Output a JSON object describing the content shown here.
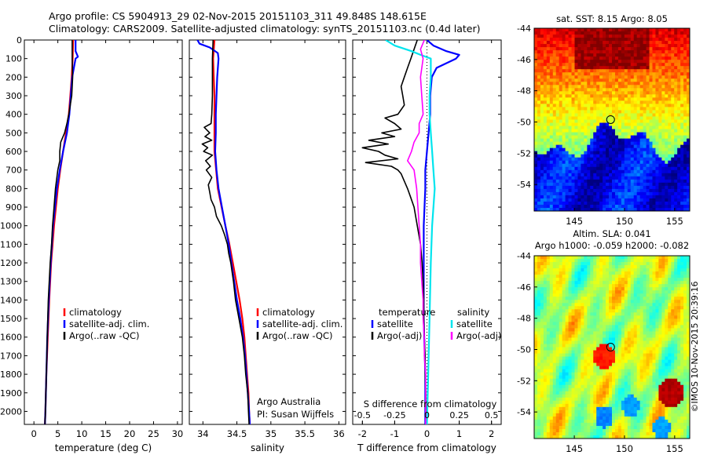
{
  "header": {
    "line1": "Argo profile: CS 5904913_29 02-Nov-2015 20151103_311 49.848S 148.615E",
    "line2": "Climatology: CARS2009. Satellite-adjusted climatology: synTS_20151103.nc (0.4d later)"
  },
  "colors": {
    "climatology": "#ff0000",
    "satellite_clim": "#0000ff",
    "argo": "#000000",
    "salinity_satellite": "#00e5ee",
    "salinity_argo": "#ff00ff"
  },
  "panels": {
    "temperature": {
      "xlabel": "temperature (deg C)",
      "xticks": [
        "0",
        "5",
        "10",
        "15",
        "20",
        "25",
        "30"
      ],
      "legend": [
        "climatology",
        "satellite-adj. clim.",
        "Argo(..raw -QC)"
      ]
    },
    "salinity": {
      "xlabel": "salinity",
      "xticks": [
        "34",
        "34.5",
        "35",
        "35.5",
        "36"
      ],
      "legend": [
        "climatology",
        "satellite-adj. clim.",
        "Argo(..raw -QC)"
      ],
      "credit1": "Argo Australia",
      "credit2": "PI: Susan Wijffels"
    },
    "difference": {
      "xlabel": "T difference from climatology",
      "xlabel_top": "S difference from climatology",
      "xticks": [
        "-2",
        "-1",
        "0",
        "1",
        "2"
      ],
      "sticks": [
        "-0.5",
        "-0.25",
        "0",
        "0.25",
        "0.5"
      ],
      "legend_t_title": "temperature",
      "legend_s_title": "salinity",
      "legend_t": [
        "satellite",
        "Argo(-adj)"
      ],
      "legend_s": [
        "satellite",
        "Argo(-adj)"
      ]
    },
    "depth_ticks": [
      "0",
      "100",
      "200",
      "300",
      "400",
      "500",
      "600",
      "700",
      "800",
      "900",
      "1000",
      "1100",
      "1200",
      "1300",
      "1400",
      "1500",
      "1600",
      "1700",
      "1800",
      "1900",
      "2000"
    ]
  },
  "maps": {
    "sst": {
      "title": "sat. SST: 8.15 Argo: 8.05",
      "yticks": [
        "-44",
        "-46",
        "-48",
        "-50",
        "-52",
        "-54"
      ],
      "xticks": [
        "145",
        "150",
        "155"
      ]
    },
    "sla": {
      "title1": "Altim. SLA: 0.041",
      "title2": "Argo h1000: -0.059 h2000: -0.082",
      "yticks": [
        "-44",
        "-46",
        "-48",
        "-50",
        "-52",
        "-54"
      ],
      "xticks": [
        "145",
        "150",
        "155"
      ]
    },
    "credit": "©IMOS 10-Nov-2015 20:39:16"
  },
  "chart_data": [
    {
      "type": "line",
      "panel": "temperature",
      "xlabel": "temperature (deg C)",
      "ylabel": "",
      "xlim": [
        -2,
        31
      ],
      "ylim": [
        2075,
        0
      ],
      "series": [
        {
          "name": "climatology",
          "depth": [
            0,
            100,
            200,
            300,
            400,
            500,
            600,
            700,
            800,
            900,
            1000,
            1200,
            1400,
            1600,
            1800,
            2000,
            2070
          ],
          "values": [
            8.2,
            8.1,
            7.9,
            7.6,
            7.3,
            6.7,
            6.1,
            5.5,
            5.0,
            4.6,
            4.2,
            3.6,
            3.2,
            2.9,
            2.6,
            2.4,
            2.3
          ]
        },
        {
          "name": "satellite-adj. clim.",
          "depth": [
            0,
            60,
            90,
            100,
            200,
            300,
            400,
            500,
            600,
            700,
            800,
            900,
            1000,
            1200,
            1400,
            1600,
            1800,
            2000,
            2070
          ],
          "values": [
            8.7,
            8.7,
            9.2,
            8.7,
            8.0,
            7.7,
            7.4,
            6.9,
            6.1,
            5.4,
            4.8,
            4.4,
            4.0,
            3.5,
            3.1,
            2.8,
            2.6,
            2.4,
            2.3
          ]
        },
        {
          "name": "Argo(..raw -QC)",
          "depth": [
            0,
            100,
            200,
            300,
            400,
            450,
            500,
            550,
            600,
            650,
            700,
            800,
            900,
            1000,
            1100,
            1200,
            1300,
            1400,
            1500,
            1600,
            1700,
            1800,
            1900,
            2000,
            2070
          ],
          "values": [
            8.0,
            8.0,
            8.1,
            7.9,
            7.3,
            6.9,
            6.4,
            5.6,
            5.4,
            5.4,
            5.0,
            4.5,
            4.2,
            3.9,
            3.7,
            3.4,
            3.2,
            3.0,
            2.9,
            2.8,
            2.7,
            2.6,
            2.5,
            2.4,
            2.3
          ]
        }
      ]
    },
    {
      "type": "line",
      "panel": "salinity",
      "xlabel": "salinity",
      "ylabel": "",
      "xlim": [
        33.8,
        36.1
      ],
      "ylim": [
        2075,
        0
      ],
      "series": [
        {
          "name": "climatology",
          "depth": [
            0,
            100,
            200,
            300,
            400,
            600,
            800,
            1000,
            1100,
            1200,
            1300,
            1400,
            1500,
            1600,
            1700,
            1800,
            1900,
            2000,
            2070
          ],
          "values": [
            34.17,
            34.15,
            34.16,
            34.17,
            34.17,
            34.17,
            34.22,
            34.33,
            34.39,
            34.44,
            34.49,
            34.54,
            34.58,
            34.61,
            34.63,
            34.65,
            34.67,
            34.68,
            34.69
          ]
        },
        {
          "name": "satellite-adj. clim.",
          "depth": [
            0,
            20,
            40,
            70,
            100,
            200,
            300,
            400,
            500,
            600,
            700,
            800,
            900,
            1000,
            1100,
            1200,
            1300,
            1400,
            1500,
            1600,
            1700,
            1800,
            1900,
            2000,
            2070
          ],
          "values": [
            33.92,
            33.95,
            34.1,
            34.22,
            34.23,
            34.21,
            34.2,
            34.19,
            34.19,
            34.18,
            34.2,
            34.23,
            34.28,
            34.33,
            34.38,
            34.42,
            34.46,
            34.5,
            34.55,
            34.59,
            34.62,
            34.64,
            34.66,
            34.68,
            34.69
          ]
        },
        {
          "name": "Argo(..raw -QC)",
          "depth": [
            0,
            100,
            200,
            300,
            400,
            450,
            470,
            500,
            520,
            540,
            560,
            580,
            600,
            620,
            650,
            680,
            700,
            740,
            780,
            820,
            860,
            900,
            950,
            1000,
            1050,
            1100,
            1150,
            1200,
            1300,
            1400,
            1500,
            1600,
            1700,
            1800,
            1900,
            2000,
            2070
          ],
          "values": [
            34.15,
            34.14,
            34.14,
            34.14,
            34.13,
            34.12,
            34.02,
            34.1,
            34.03,
            34.13,
            33.99,
            34.07,
            34.01,
            34.14,
            34.04,
            34.11,
            34.05,
            34.13,
            34.08,
            34.1,
            34.12,
            34.17,
            34.2,
            34.27,
            34.32,
            34.36,
            34.38,
            34.41,
            34.45,
            34.48,
            34.53,
            34.58,
            34.61,
            34.63,
            34.66,
            34.67,
            34.68
          ]
        }
      ]
    },
    {
      "type": "line",
      "panel": "difference",
      "xlabel": "T difference from climatology",
      "xlabel_top": "S difference from climatology",
      "xlim": [
        -2.3,
        2.3
      ],
      "ylim": [
        2075,
        0
      ],
      "series": [
        {
          "name": "temperature satellite",
          "depth": [
            0,
            30,
            60,
            80,
            100,
            150,
            200,
            300,
            400,
            500,
            600,
            700,
            800,
            1000,
            1200,
            1500,
            1800,
            2070
          ],
          "values": [
            0.0,
            0.2,
            0.6,
            1.0,
            0.9,
            0.3,
            0.15,
            0.1,
            0.1,
            0.05,
            0.0,
            -0.05,
            -0.05,
            -0.1,
            -0.1,
            -0.1,
            -0.05,
            -0.05
          ]
        },
        {
          "name": "temperature Argo(-adj)",
          "depth": [
            0,
            50,
            100,
            150,
            200,
            250,
            300,
            350,
            400,
            420,
            450,
            480,
            500,
            520,
            540,
            560,
            580,
            600,
            620,
            640,
            660,
            680,
            700,
            720,
            760,
            800,
            850,
            900,
            1000,
            1100,
            1200,
            1300,
            1400,
            1500,
            1600,
            1700,
            1800,
            1900,
            2000,
            2070
          ],
          "values": [
            -0.3,
            -0.4,
            -0.5,
            -0.6,
            -0.7,
            -0.8,
            -0.75,
            -0.7,
            -0.9,
            -1.3,
            -1.0,
            -0.8,
            -1.4,
            -1.0,
            -1.8,
            -1.2,
            -2.0,
            -1.5,
            -1.3,
            -0.9,
            -1.9,
            -1.1,
            -0.9,
            -0.8,
            -0.7,
            -0.6,
            -0.5,
            -0.4,
            -0.3,
            -0.2,
            -0.15,
            -0.12,
            -0.1,
            -0.1,
            -0.08,
            -0.06,
            -0.05,
            -0.04,
            -0.03,
            -0.02
          ]
        },
        {
          "name": "salinity satellite",
          "depth": [
            0,
            30,
            60,
            80,
            100,
            200,
            300,
            400,
            500,
            600,
            700,
            800,
            1000,
            1200,
            1500,
            1800,
            2070
          ],
          "values": [
            -0.32,
            -0.25,
            -0.12,
            -0.05,
            0.03,
            0.03,
            0.02,
            0.02,
            0.03,
            0.04,
            0.05,
            0.06,
            0.04,
            0.03,
            0.02,
            0.01,
            0.0
          ]
        },
        {
          "name": "salinity Argo(-adj)",
          "depth": [
            0,
            50,
            100,
            200,
            300,
            400,
            450,
            500,
            550,
            600,
            650,
            700,
            800,
            900,
            1000,
            1100,
            1200,
            1300,
            1400,
            1500,
            1600,
            1700,
            1800,
            1900,
            2000,
            2070
          ],
          "values": [
            -0.02,
            -0.05,
            -0.03,
            -0.05,
            -0.04,
            -0.03,
            -0.06,
            -0.06,
            -0.1,
            -0.12,
            -0.15,
            -0.1,
            -0.08,
            -0.07,
            -0.06,
            -0.05,
            -0.05,
            -0.04,
            -0.03,
            -0.03,
            -0.02,
            -0.02,
            -0.01,
            -0.01,
            -0.01,
            -0.01
          ]
        }
      ]
    },
    {
      "type": "heatmap",
      "panel": "sat. SST map",
      "xlim": [
        141,
        156.5
      ],
      "ylim": [
        -55.7,
        -44
      ],
      "argo_position": {
        "lon": 148.615,
        "lat": -49.848
      }
    },
    {
      "type": "heatmap",
      "panel": "Altim. SLA map",
      "xlim": [
        141,
        156.5
      ],
      "ylim": [
        -55.7,
        -44
      ],
      "argo_position": {
        "lon": 148.615,
        "lat": -49.848
      }
    }
  ]
}
